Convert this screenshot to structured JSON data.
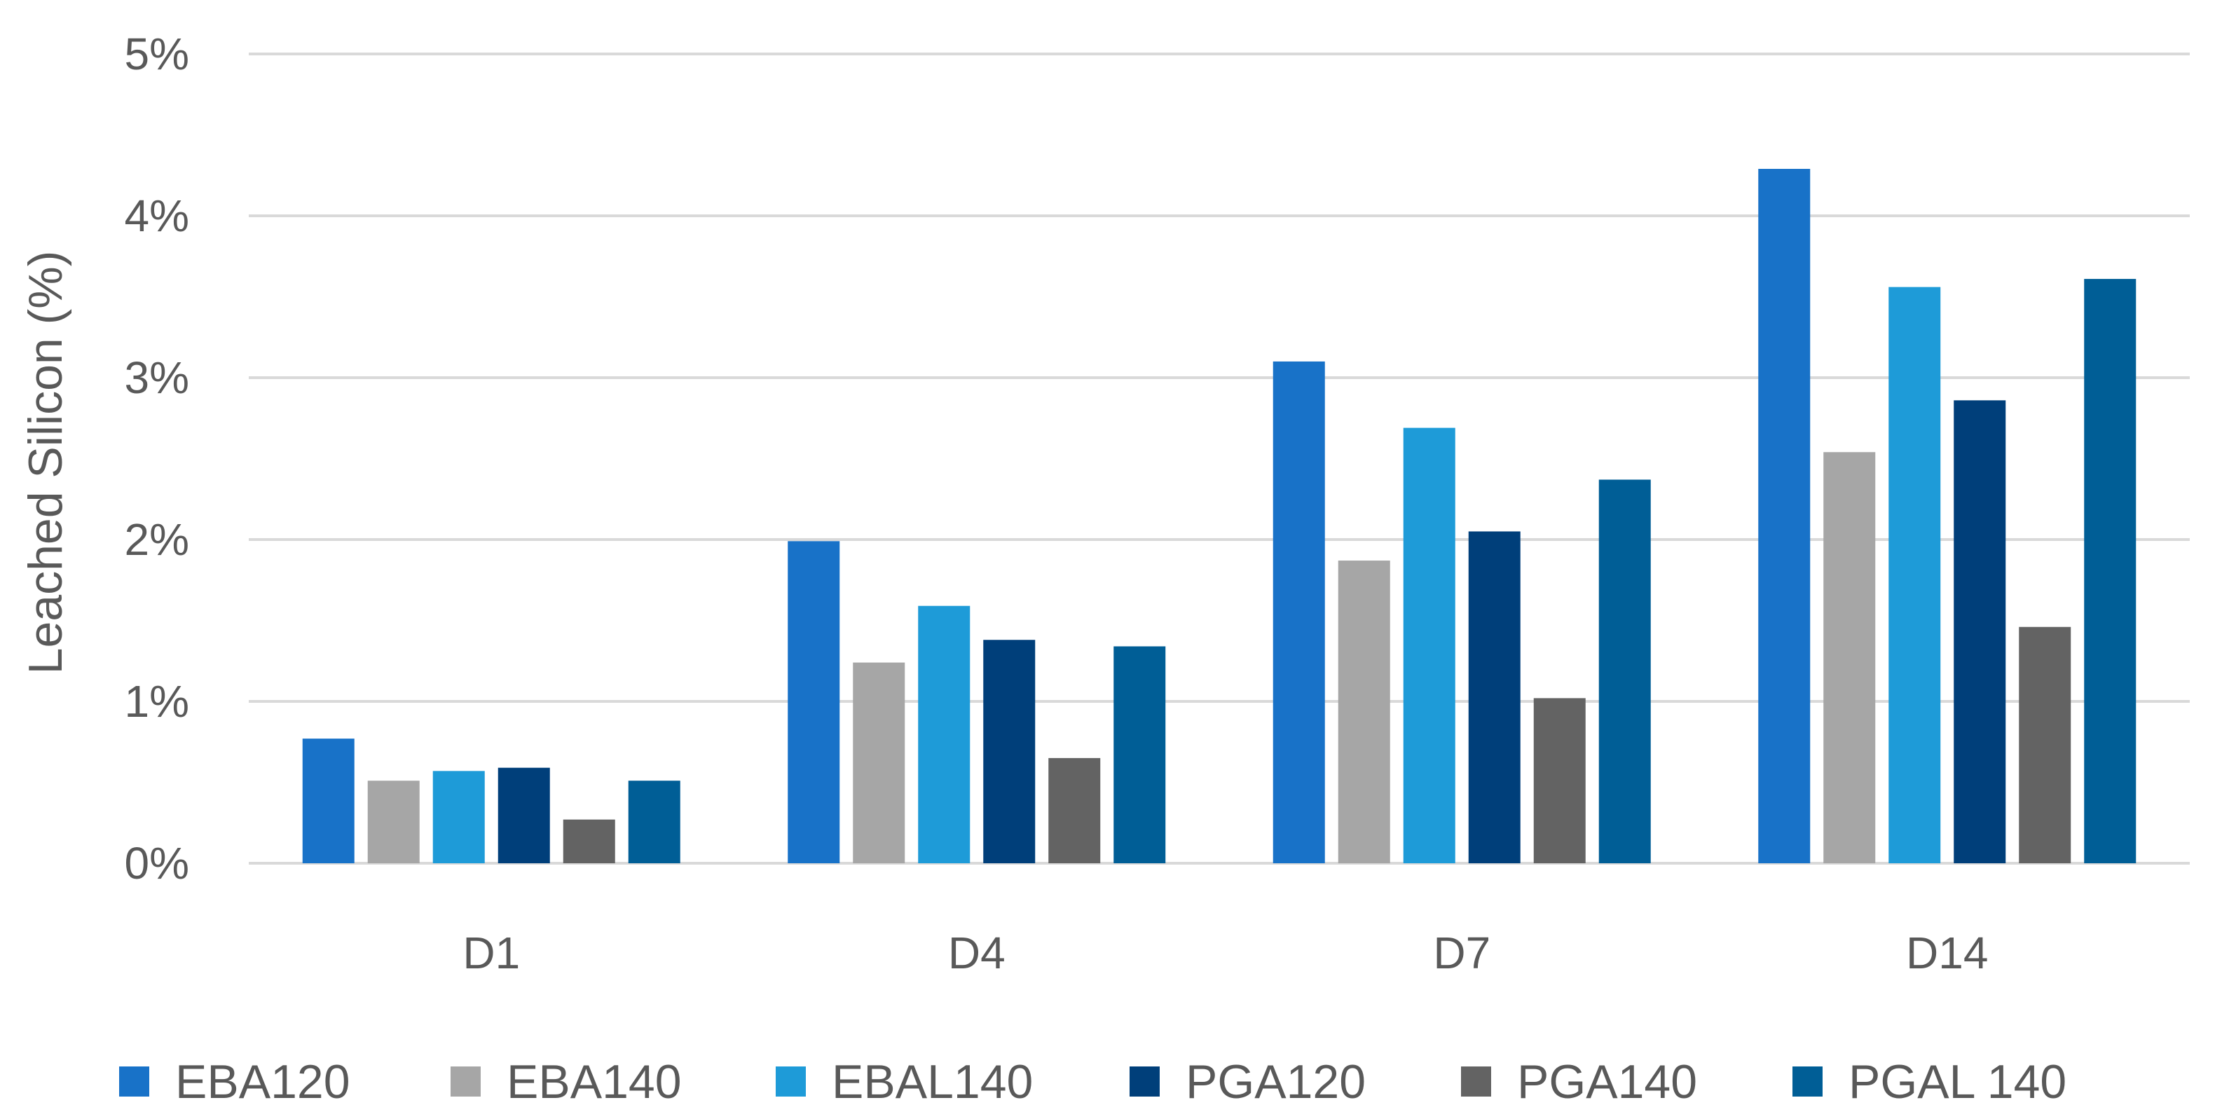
{
  "chart_data": {
    "type": "bar",
    "title": "",
    "xlabel": "",
    "ylabel": "Leached Silicon (%)",
    "ylim": [
      0,
      5
    ],
    "yticks": [
      "0%",
      "1%",
      "2%",
      "3%",
      "4%",
      "5%"
    ],
    "grid": true,
    "legend_position": "bottom",
    "categories": [
      "D1",
      "D4",
      "D7",
      "D14"
    ],
    "series": [
      {
        "name": "EBA120",
        "color": "#1872C8",
        "values": [
          0.77,
          1.99,
          3.1,
          4.29
        ]
      },
      {
        "name": "EBA140",
        "color": "#A6A6A6",
        "values": [
          0.51,
          1.24,
          1.87,
          2.54
        ]
      },
      {
        "name": "EBAL140",
        "color": "#1E9BD8",
        "values": [
          0.57,
          1.59,
          2.69,
          3.56
        ]
      },
      {
        "name": "PGA120",
        "color": "#003F7A",
        "values": [
          0.59,
          1.38,
          2.05,
          2.86
        ]
      },
      {
        "name": "PGA140",
        "color": "#636363",
        "values": [
          0.27,
          0.65,
          1.02,
          1.46
        ]
      },
      {
        "name": "PGAL 140",
        "color": "#005E96",
        "values": [
          0.51,
          1.34,
          2.37,
          3.61
        ]
      }
    ]
  }
}
